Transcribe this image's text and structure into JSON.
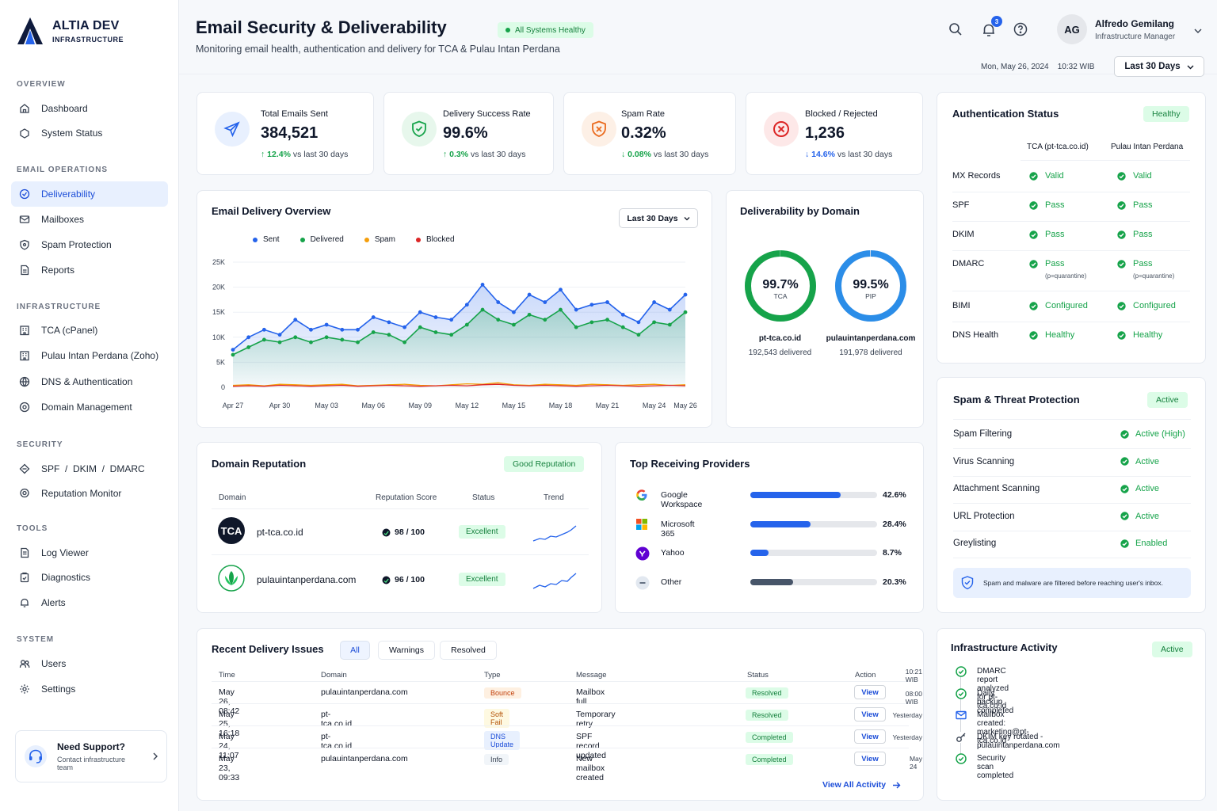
{
  "brand": {
    "name": "ALTIA DEV",
    "sub": "INFRASTRUCTURE"
  },
  "sidebar": {
    "overview": {
      "title": "OVERVIEW",
      "items": [
        {
          "label": "Dashboard"
        },
        {
          "label": "System Status"
        }
      ]
    },
    "email_ops": {
      "title": "EMAIL OPERATIONS",
      "items": [
        {
          "label": "Deliverability"
        },
        {
          "label": "Mailboxes"
        },
        {
          "label": "Spam Protection"
        },
        {
          "label": "Reports"
        }
      ]
    },
    "infra": {
      "title": "INFRASTRUCTURE",
      "items": [
        {
          "label": "TCA (cPanel)"
        },
        {
          "label": "Pulau Intan Perdana (Zoho)"
        },
        {
          "label": "DNS & Authentication"
        },
        {
          "label": "Domain Management"
        }
      ]
    },
    "security": {
      "title": "SECURITY",
      "items": [
        {
          "label": "SPF  /  DKIM  /  DMARC"
        },
        {
          "label": "Reputation Monitor"
        }
      ]
    },
    "tools": {
      "title": "TOOLS",
      "items": [
        {
          "label": "Log Viewer"
        },
        {
          "label": "Diagnostics"
        },
        {
          "label": "Alerts"
        }
      ]
    },
    "system": {
      "title": "SYSTEM",
      "items": [
        {
          "label": "Users"
        },
        {
          "label": "Settings"
        }
      ]
    },
    "support": {
      "title": "Need Support?",
      "sub": "Contact infrastructure team"
    }
  },
  "header": {
    "title": "Email Security & Deliverability",
    "subtitle": "Monitoring email health, authentication and delivery for TCA & Pulau Intan Perdana",
    "status_badge": "All Systems Healthy",
    "notifications": "3",
    "user": {
      "initials": "AG",
      "name": "Alfredo Gemilang",
      "role": "Infrastructure Manager"
    },
    "date": "Mon, May 26, 2024",
    "time": "10:32 WIB",
    "range": "Last 30 Days"
  },
  "stats": [
    {
      "label": "Total Emails Sent",
      "value": "384,521",
      "change": "12.4%",
      "suffix": "vs last 30 days"
    },
    {
      "label": "Delivery Success Rate",
      "value": "99.6%",
      "change": "0.3%",
      "suffix": "vs last 30 days"
    },
    {
      "label": "Spam Rate",
      "value": "0.32%",
      "change": "0.08%",
      "suffix": "vs last 30 days"
    },
    {
      "label": "Blocked / Rejected",
      "value": "1,236",
      "change": "14.6%",
      "suffix": "vs last 30 days"
    }
  ],
  "colors": {
    "sent": "#2563eb",
    "delivered": "#16a34a",
    "spam": "#f59e0b",
    "blocked": "#dc2626"
  },
  "chart_data": {
    "type": "line",
    "title": "Email Delivery Overview",
    "range_label": "Last 30 Days",
    "x": [
      "Apr 27",
      "Apr 28",
      "Apr 29",
      "Apr 30",
      "May 01",
      "May 02",
      "May 03",
      "May 04",
      "May 05",
      "May 06",
      "May 07",
      "May 08",
      "May 09",
      "May 10",
      "May 11",
      "May 12",
      "May 13",
      "May 14",
      "May 15",
      "May 16",
      "May 17",
      "May 18",
      "May 19",
      "May 20",
      "May 21",
      "May 22",
      "May 23",
      "May 24",
      "May 25",
      "May 26"
    ],
    "tick_labels": [
      "Apr 27",
      "Apr 30",
      "May 03",
      "May 06",
      "May 09",
      "May 12",
      "May 15",
      "May 18",
      "May 21",
      "May 24",
      "May 26"
    ],
    "y_ticks": [
      "0",
      "5K",
      "10K",
      "15K",
      "20K",
      "25K"
    ],
    "ylim": [
      0,
      25000
    ],
    "series": [
      {
        "name": "Sent",
        "values": [
          7500,
          10000,
          11500,
          10500,
          13500,
          11500,
          12500,
          11500,
          11500,
          14000,
          13000,
          12000,
          15000,
          14000,
          13500,
          16500,
          20500,
          17000,
          15000,
          18500,
          17000,
          19500,
          15500,
          16500,
          17000,
          14500,
          13000,
          17000,
          15500,
          18500
        ]
      },
      {
        "name": "Delivered",
        "values": [
          6500,
          8000,
          9500,
          9000,
          10000,
          9000,
          10000,
          9500,
          9000,
          11000,
          10500,
          9000,
          12000,
          11000,
          10500,
          12500,
          15500,
          13500,
          12500,
          14500,
          13500,
          15500,
          12000,
          13000,
          13500,
          12000,
          10500,
          13000,
          12500,
          15000
        ]
      },
      {
        "name": "Spam",
        "values": [
          400,
          500,
          300,
          600,
          500,
          400,
          500,
          600,
          300,
          400,
          500,
          600,
          400,
          300,
          500,
          700,
          600,
          900,
          500,
          400,
          600,
          500,
          400,
          600,
          500,
          400,
          500,
          600,
          400,
          500
        ]
      },
      {
        "name": "Blocked",
        "values": [
          200,
          300,
          200,
          400,
          300,
          200,
          300,
          400,
          200,
          300,
          400,
          300,
          200,
          300,
          400,
          300,
          500,
          600,
          400,
          300,
          400,
          300,
          200,
          300,
          400,
          300,
          200,
          300,
          400,
          300
        ]
      }
    ]
  },
  "domains": {
    "title": "Deliverability by Domain",
    "items": [
      {
        "pct": "99.7%",
        "short": "TCA",
        "value": 99.7,
        "domain": "pt-tca.co.id",
        "delivered": "192,543 delivered",
        "color": "#16a34a"
      },
      {
        "pct": "99.5%",
        "short": "PIP",
        "value": 99.5,
        "domain": "pulauintanperdana.com",
        "delivered": "191,978 delivered",
        "color": "#2b8de8"
      }
    ]
  },
  "auth": {
    "title": "Authentication Status",
    "badge": "Healthy",
    "col1": "TCA (pt-tca.co.id)",
    "col2": "Pulau Intan Perdana",
    "rows": [
      {
        "label": "MX Records",
        "a": "Valid",
        "b": "Valid",
        "note": ""
      },
      {
        "label": "SPF",
        "a": "Pass",
        "b": "Pass",
        "note": ""
      },
      {
        "label": "DKIM",
        "a": "Pass",
        "b": "Pass",
        "note": ""
      },
      {
        "label": "DMARC",
        "a": "Pass",
        "b": "Pass",
        "note": "(p=quarantine)"
      },
      {
        "label": "BIMI",
        "a": "Configured",
        "b": "Configured",
        "note": ""
      },
      {
        "label": "DNS Health",
        "a": "Healthy",
        "b": "Healthy",
        "note": ""
      }
    ]
  },
  "reputation": {
    "title": "Domain Reputation",
    "badge": "Good Reputation",
    "headers": {
      "domain": "Domain",
      "score": "Reputation Score",
      "status": "Status",
      "trend": "Trend"
    },
    "rows": [
      {
        "logo": "TCA",
        "domain": "pt-tca.co.id",
        "score": "98 / 100",
        "status": "Excellent"
      },
      {
        "logo": "",
        "domain": "pulauintanperdana.com",
        "score": "96 / 100",
        "status": "Excellent"
      }
    ]
  },
  "providers": {
    "title": "Top Receiving Providers",
    "items": [
      {
        "name": "Google Workspace",
        "pct": "42.6%",
        "value": 42.6,
        "color": "#2563eb"
      },
      {
        "name": "Microsoft 365",
        "pct": "28.4%",
        "value": 28.4,
        "color": "#2563eb"
      },
      {
        "name": "Yahoo",
        "pct": "8.7%",
        "value": 8.7,
        "color": "#2563eb"
      },
      {
        "name": "Other",
        "pct": "20.3%",
        "value": 20.3,
        "color": "#475569"
      }
    ]
  },
  "spam": {
    "title": "Spam & Threat Protection",
    "badge": "Active",
    "rows": [
      {
        "label": "Spam Filtering",
        "status": "Active (High)"
      },
      {
        "label": "Virus Scanning",
        "status": "Active"
      },
      {
        "label": "Attachment Scanning",
        "status": "Active"
      },
      {
        "label": "URL Protection",
        "status": "Active"
      },
      {
        "label": "Greylisting",
        "status": "Enabled"
      }
    ],
    "note": "Spam and malware are filtered before reaching user's inbox."
  },
  "issues": {
    "title": "Recent Delivery Issues",
    "tabs": [
      "All",
      "Warnings",
      "Resolved"
    ],
    "headers": {
      "time": "Time",
      "domain": "Domain",
      "type": "Type",
      "message": "Message",
      "status": "Status",
      "action": "Action"
    },
    "rows": [
      {
        "time": "May 26, 08:42",
        "domain": "pulauintanperdana.com",
        "type": "Bounce",
        "message": "Mailbox full",
        "status": "Resolved",
        "action": "View"
      },
      {
        "time": "May 25, 16:18",
        "domain": "pt-tca.co.id",
        "type": "Soft Fail",
        "message": "Temporary retry",
        "status": "Resolved",
        "action": "View"
      },
      {
        "time": "May 24, 11:07",
        "domain": "pt-tca.co.id",
        "type": "DNS Update",
        "message": "SPF record updated",
        "status": "Completed",
        "action": "View"
      },
      {
        "time": "May 23, 09:33",
        "domain": "pulauintanperdana.com",
        "type": "Info",
        "message": "New mailbox created",
        "status": "Completed",
        "action": "View"
      }
    ],
    "view_all": "View All Activity"
  },
  "activity": {
    "title": "Infrastructure Activity",
    "badge": "Active",
    "items": [
      {
        "text": "DMARC report analyzed for pt-tca.co.id",
        "time": "10:21 WIB",
        "icon": "check-circle-icon"
      },
      {
        "text": "Daily backup completed",
        "time": "08:00 WIB",
        "icon": "check-circle-icon"
      },
      {
        "text": "Mailbox created: marketing@pt-tca.co.id",
        "time": "Yesterday",
        "icon": "mail-icon"
      },
      {
        "text": "DKIM key rotated - pulauintanperdana.com",
        "time": "Yesterday",
        "icon": "key-icon"
      },
      {
        "text": "Security scan completed",
        "time": "May 24",
        "icon": "check-circle-icon"
      }
    ]
  }
}
